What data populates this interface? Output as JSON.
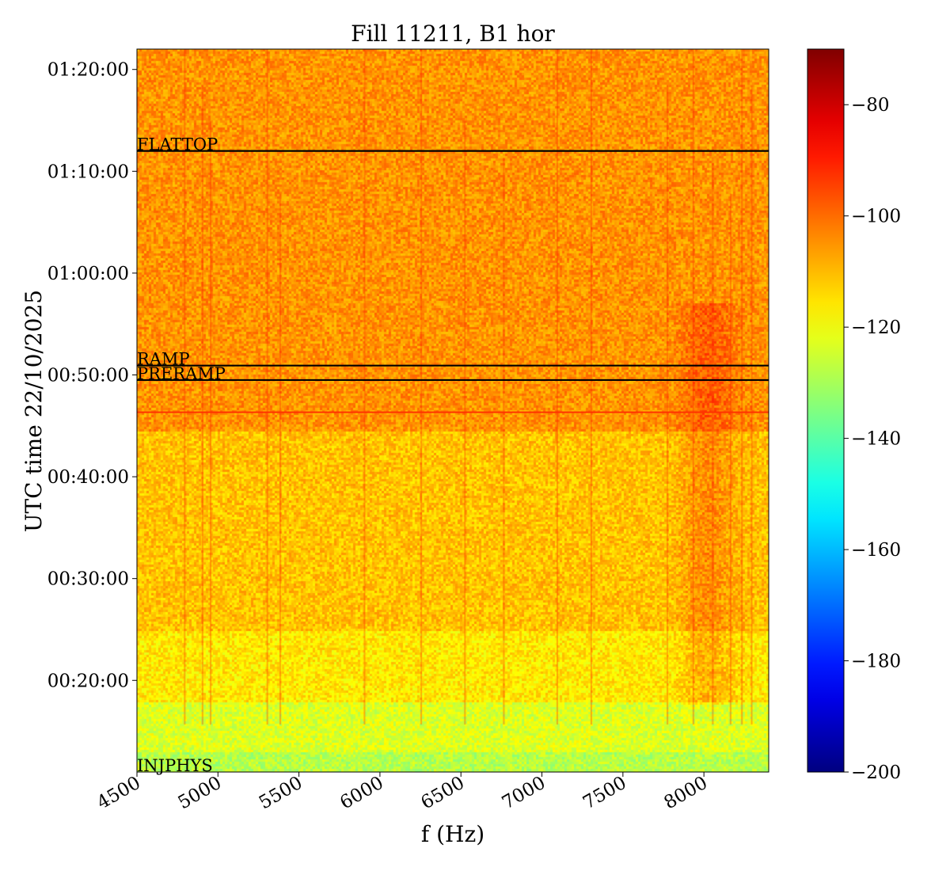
{
  "chart_data": {
    "type": "heatmap",
    "title": "Fill 11211, B1 hor",
    "xlabel": "f (Hz)",
    "ylabel": "UTC time 22/10/2025",
    "xlim": [
      4500,
      8400
    ],
    "ylim": [
      "00:11:00",
      "01:22:00"
    ],
    "x_ticks": [
      4500,
      5000,
      5500,
      6000,
      6500,
      7000,
      7500,
      8000
    ],
    "x_tick_labels": [
      "4500",
      "5000",
      "5500",
      "6000",
      "6500",
      "7000",
      "7500",
      "8000"
    ],
    "y_ticks": [
      "00:20:00",
      "00:30:00",
      "00:40:00",
      "00:50:00",
      "01:00:00",
      "01:10:00",
      "01:20:00"
    ],
    "colormap": "jet",
    "colorbar": {
      "range": [
        -200,
        -70
      ],
      "ticks": [
        -200,
        -180,
        -160,
        -140,
        -120,
        -100,
        -80
      ],
      "tick_labels": [
        "−200",
        "−180",
        "−160",
        "−140",
        "−120",
        "−100",
        "−80"
      ]
    },
    "markers": [
      {
        "label": "INJPHYS",
        "time": "00:11:00",
        "line_color": "none"
      },
      {
        "label": "PRERAMP",
        "time": "00:49:30",
        "line_color": "#000000"
      },
      {
        "label": "RAMP",
        "time": "00:50:55",
        "line_color": "#000000"
      },
      {
        "label": "FLATTOP",
        "time": "01:12:00",
        "line_color": "#000000"
      }
    ],
    "extra_line": {
      "time": "00:46:20",
      "line_color": "#ff3300"
    },
    "bands": [
      {
        "from": "00:11:00",
        "to": "00:13:00",
        "level": -128
      },
      {
        "from": "00:13:00",
        "to": "00:18:00",
        "level": -123
      },
      {
        "from": "00:18:00",
        "to": "00:25:00",
        "level": -116
      },
      {
        "from": "00:25:00",
        "to": "00:44:30",
        "level": -111
      },
      {
        "from": "00:44:30",
        "to": "01:22:00",
        "level": -105
      }
    ]
  }
}
